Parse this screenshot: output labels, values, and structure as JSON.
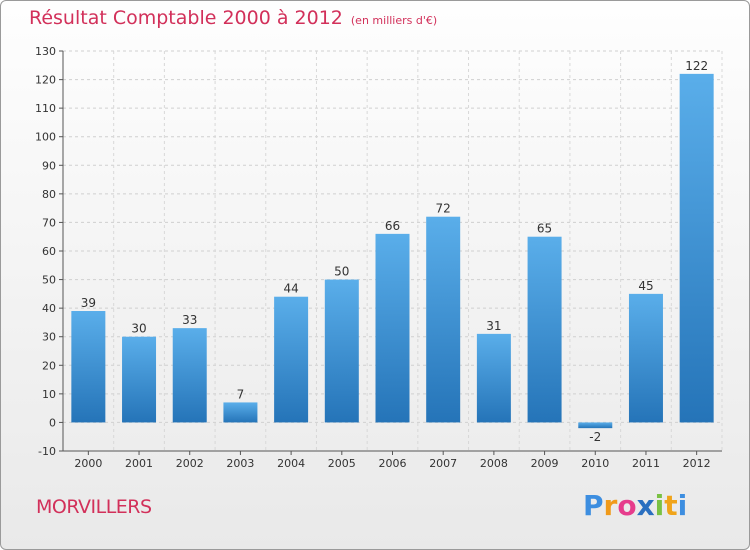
{
  "header": {
    "title": "Résultat Comptable 2000 à 2012",
    "subtitle": "(en milliers d'€)"
  },
  "footer": {
    "city": "MORVILLERS",
    "brand_letters": [
      "P",
      "r",
      "o",
      "x",
      "i",
      "t",
      "i"
    ],
    "brand_colors": [
      "#3d8ee0",
      "#f09a1a",
      "#e63c8c",
      "#2a6fc0",
      "#7ac143",
      "#f0a41a",
      "#3d8ee0"
    ]
  },
  "chart_data": {
    "type": "bar",
    "title": "Résultat Comptable 2000 à 2012",
    "subtitle": "(en milliers d'€)",
    "categories": [
      "2000",
      "2001",
      "2002",
      "2003",
      "2004",
      "2005",
      "2006",
      "2007",
      "2008",
      "2009",
      "2010",
      "2011",
      "2012"
    ],
    "values": [
      39,
      30,
      33,
      7,
      44,
      50,
      66,
      72,
      31,
      65,
      -2,
      45,
      122
    ],
    "value_labels": [
      "39",
      "30",
      "33",
      "7",
      "44",
      "50",
      "66",
      "72",
      "31",
      "65",
      "-2",
      "45",
      "122"
    ],
    "ylim": [
      -10,
      130
    ],
    "yticks": [
      -10,
      0,
      10,
      20,
      30,
      40,
      50,
      60,
      70,
      80,
      90,
      100,
      110,
      120,
      130
    ],
    "ytick_labels": [
      "-10",
      "0",
      "10",
      "20",
      "30",
      "40",
      "50",
      "60",
      "70",
      "80",
      "90",
      "100",
      "110",
      "120",
      "130"
    ],
    "grid": true,
    "bar_color": "#3b8fd6",
    "bar_color_light": "#5fb0ea",
    "bar_color_dark": "#2a76bb"
  }
}
